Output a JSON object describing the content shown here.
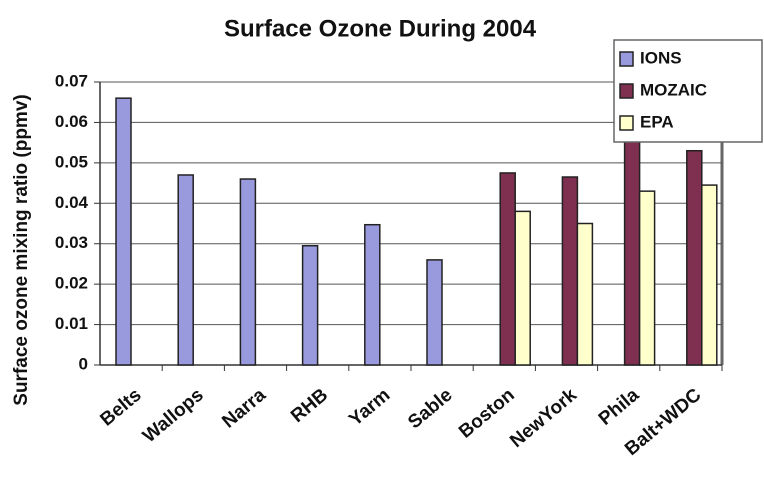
{
  "chart_data": {
    "type": "bar",
    "title": "Surface Ozone During 2004",
    "y_label": "Surface ozone mixing ratio (ppmv)",
    "categories": [
      "Belts",
      "Wallops",
      "Narra",
      "RHB",
      "Yarm",
      "Sable",
      "Boston",
      "NewYork",
      "Phila",
      "Balt+WDC"
    ],
    "series": [
      {
        "name": "IONS",
        "color": "#9999dd",
        "values": [
          0.066,
          0.047,
          0.046,
          0.0295,
          0.0347,
          0.026,
          null,
          null,
          null,
          null
        ]
      },
      {
        "name": "MOZAIC",
        "color": "#7f2f4f",
        "values": [
          null,
          null,
          null,
          null,
          null,
          null,
          0.0475,
          0.0465,
          0.061,
          0.053
        ]
      },
      {
        "name": "EPA",
        "color": "#ffffcc",
        "values": [
          null,
          null,
          null,
          null,
          null,
          null,
          0.038,
          0.035,
          0.043,
          0.0445
        ]
      }
    ],
    "ylim": [
      0,
      0.07
    ],
    "yticks": [
      0,
      0.01,
      0.02,
      0.03,
      0.04,
      0.05,
      0.06,
      0.07
    ],
    "grid": true,
    "legend": "top-right"
  }
}
